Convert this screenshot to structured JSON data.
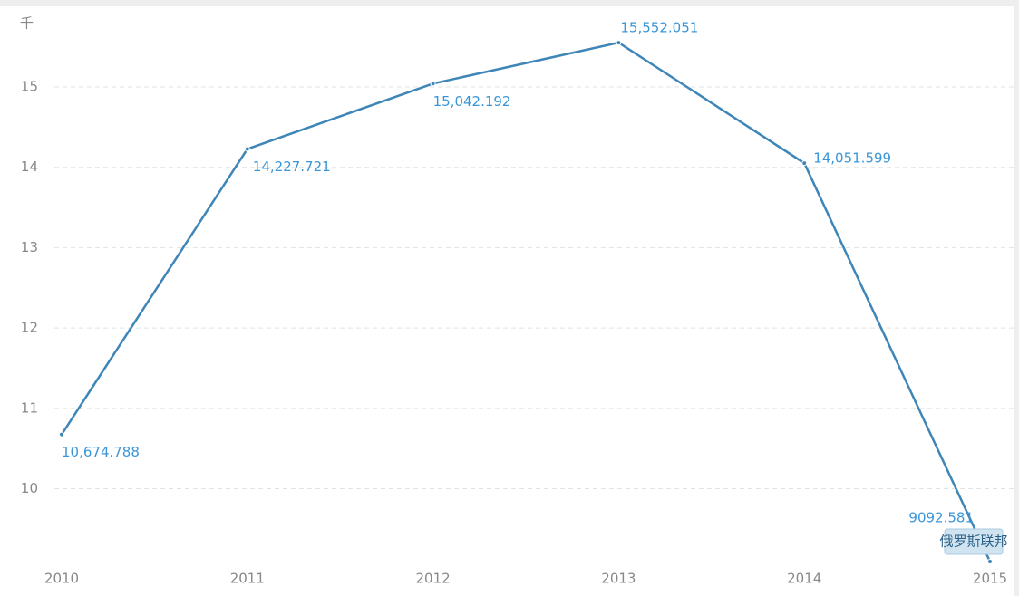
{
  "chart_data": {
    "type": "line",
    "y_unit": "千",
    "x": [
      2010,
      2011,
      2012,
      2013,
      2014,
      2015
    ],
    "xlim": [
      2010,
      2015
    ],
    "xticks": [
      2010,
      2011,
      2012,
      2013,
      2014,
      2015
    ],
    "series": [
      {
        "name": "俄罗斯联邦",
        "color": "#3f86b8",
        "values": [
          10.674788,
          14.227721,
          15.042192,
          15.552051,
          14.051599,
          9.092581
        ],
        "value_labels": [
          "10,674.788",
          "14,227.721",
          "15,042.192",
          "15,552.051",
          "14,051.599",
          "9092.581"
        ]
      }
    ],
    "ylim": [
      9.07,
      15.97
    ],
    "yticks": [
      10,
      11,
      12,
      13,
      14,
      15
    ],
    "grid": true
  }
}
